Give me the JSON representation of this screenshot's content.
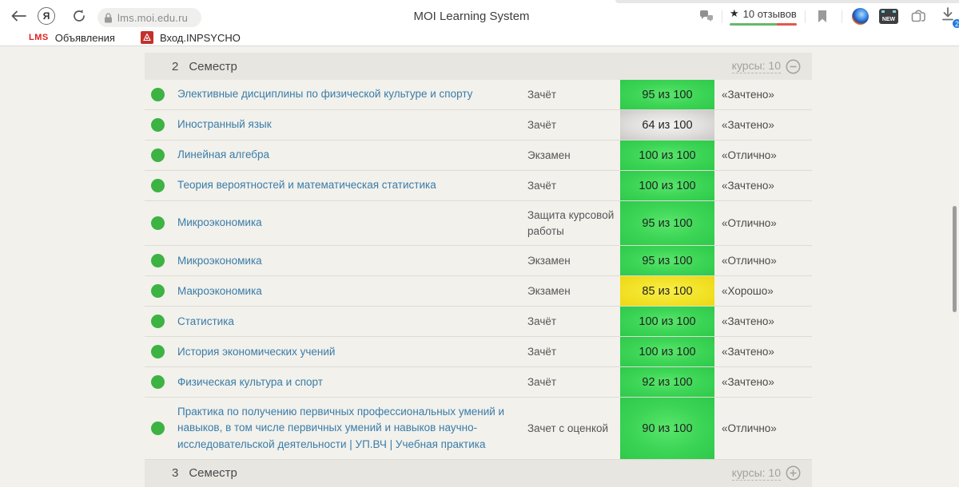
{
  "browser": {
    "url": "lms.moi.edu.ru",
    "page_title": "MOI Learning System",
    "rating": {
      "star": "★",
      "text": "10 отзывов"
    },
    "download_badge": "2",
    "new_badge_label": "NEW",
    "yandex_letter": "Я",
    "back_glyph": "←",
    "bookmarks": [
      {
        "icon": "LMS",
        "label": "Объявления"
      },
      {
        "icon": "crest",
        "label": "Вход.INPSYCHO"
      }
    ]
  },
  "section_top": {
    "number": "2",
    "title": "Семестр",
    "courses_label": "курсы: 10",
    "toggle": "minus"
  },
  "section_bottom": {
    "number": "3",
    "title": "Семестр",
    "courses_label": "курсы: 10",
    "toggle": "plus"
  },
  "table": {
    "rows": [
      {
        "name": "Элективные дисциплины по физической культуре и спорту",
        "type": "Зачёт",
        "score": "95 из 100",
        "score_color": "green",
        "grade": "«Зачтено»"
      },
      {
        "name": "Иностранный язык",
        "type": "Зачёт",
        "score": "64 из 100",
        "score_color": "gray",
        "grade": "«Зачтено»"
      },
      {
        "name": "Линейная алгебра",
        "type": "Экзамен",
        "score": "100 из 100",
        "score_color": "green",
        "grade": "«Отлично»"
      },
      {
        "name": "Теория вероятностей и математическая статистика",
        "type": "Зачёт",
        "score": "100 из 100",
        "score_color": "green",
        "grade": "«Зачтено»"
      },
      {
        "name": "Микроэкономика",
        "type": "Защита курсовой работы",
        "score": "95 из 100",
        "score_color": "green",
        "grade": "«Отлично»"
      },
      {
        "name": "Микроэкономика",
        "type": "Экзамен",
        "score": "95 из 100",
        "score_color": "green",
        "grade": "«Отлично»"
      },
      {
        "name": "Макроэкономика",
        "type": "Экзамен",
        "score": "85 из 100",
        "score_color": "yellow",
        "grade": "«Хорошо»"
      },
      {
        "name": "Статистика",
        "type": "Зачёт",
        "score": "100 из 100",
        "score_color": "green",
        "grade": "«Зачтено»"
      },
      {
        "name": "История экономических учений",
        "type": "Зачёт",
        "score": "100 из 100",
        "score_color": "green",
        "grade": "«Зачтено»"
      },
      {
        "name": "Физическая культура и спорт",
        "type": "Зачёт",
        "score": "92 из 100",
        "score_color": "green",
        "grade": "«Зачтено»"
      },
      {
        "name": "Практика по получению первичных профессиональных умений и навыков, в том числе первичных умений и навыков научно-исследовательской деятельности | УП.ВЧ | Учебная практика",
        "type": "Зачет с оценкой",
        "score": "90 из 100",
        "score_color": "green",
        "grade": "«Отлично»"
      }
    ]
  },
  "colors": {
    "badge_green": "#3bd455",
    "badge_yellow": "#f2e228",
    "badge_gray": "#d6d5d3",
    "status_dot": "#3cb342",
    "link_blue": "#3a7ca8",
    "section_header_bg": "#e7e6e1",
    "page_bg": "#f2f1ec",
    "rating_green": "#66b96a",
    "rating_red": "#e2574c",
    "download_badge_blue": "#1f7ae0"
  }
}
